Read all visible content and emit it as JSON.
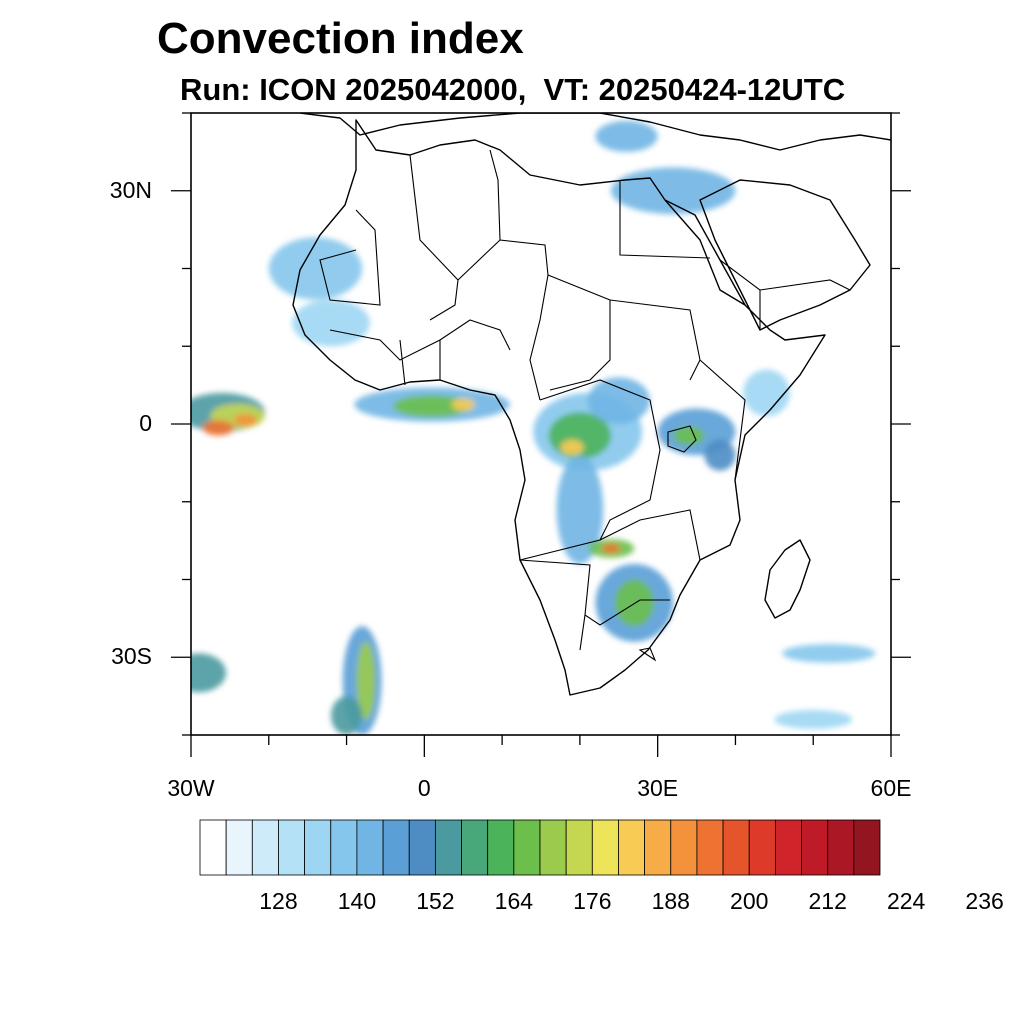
{
  "map": {
    "title": "Convection index",
    "subtitle": "Run: ICON 2025042000,  VT: 20250424-12UTC",
    "lon_ticks": [
      {
        "value": -30,
        "label": "30W"
      },
      {
        "value": 0,
        "label": "0"
      },
      {
        "value": 30,
        "label": "30E"
      },
      {
        "value": 60,
        "label": "60E"
      }
    ],
    "lat_ticks": [
      {
        "value": 30,
        "label": "30N"
      },
      {
        "value": 0,
        "label": "0"
      },
      {
        "value": -30,
        "label": "30S"
      }
    ],
    "lon_range": [
      -30,
      60
    ],
    "lat_range": [
      -40,
      40
    ]
  },
  "colorbar": {
    "colors": [
      "#ffffff",
      "#e8f5fc",
      "#cdebf9",
      "#b4e1f6",
      "#9dd6f3",
      "#85c6ec",
      "#70b5e4",
      "#5a9fd6",
      "#4d8dc4",
      "#4a9aa0",
      "#49a879",
      "#4bb35a",
      "#6cbf4b",
      "#9acb4c",
      "#c5d651",
      "#eee45a",
      "#f8cb55",
      "#f7ac47",
      "#f4913b",
      "#ee7232",
      "#e6542c",
      "#dd3a2a",
      "#cf252a",
      "#be1a28",
      "#ab1724",
      "#931520"
    ],
    "labels": [
      "128",
      "140",
      "152",
      "164",
      "176",
      "188",
      "200",
      "212",
      "224",
      "236"
    ]
  },
  "convection_regions": [
    {
      "lon": -26,
      "lat": 1.5,
      "rx": 5.5,
      "ry": 2.5,
      "level": 9
    },
    {
      "lon": -24,
      "lat": 1.0,
      "rx": 3.5,
      "ry": 1.6,
      "level": 14
    },
    {
      "lon": -26.5,
      "lat": -0.5,
      "rx": 2.0,
      "ry": 1.0,
      "level": 19
    },
    {
      "lon": -23,
      "lat": 0.5,
      "rx": 1.5,
      "ry": 0.8,
      "level": 18
    },
    {
      "lon": 1,
      "lat": 2.5,
      "rx": 10,
      "ry": 2.2,
      "level": 6
    },
    {
      "lon": 1,
      "lat": 2.3,
      "rx": 5,
      "ry": 1.4,
      "level": 12
    },
    {
      "lon": 5,
      "lat": 2.5,
      "rx": 1.5,
      "ry": 0.8,
      "level": 16
    },
    {
      "lon": 21,
      "lat": -1,
      "rx": 7,
      "ry": 5,
      "level": 5
    },
    {
      "lon": 20,
      "lat": -1.5,
      "rx": 4,
      "ry": 3,
      "level": 11
    },
    {
      "lon": 19,
      "lat": -3,
      "rx": 1.5,
      "ry": 1.0,
      "level": 16
    },
    {
      "lon": 25,
      "lat": 3,
      "rx": 4,
      "ry": 3,
      "level": 6
    },
    {
      "lon": 35,
      "lat": -1,
      "rx": 5,
      "ry": 3,
      "level": 7
    },
    {
      "lon": 34,
      "lat": -1.5,
      "rx": 2,
      "ry": 1.2,
      "level": 12
    },
    {
      "lon": 38,
      "lat": -4,
      "rx": 2,
      "ry": 2,
      "level": 8
    },
    {
      "lon": 20,
      "lat": -11,
      "rx": 3,
      "ry": 7,
      "level": 6
    },
    {
      "lon": 24,
      "lat": -16,
      "rx": 3,
      "ry": 1.2,
      "level": 12
    },
    {
      "lon": 24,
      "lat": -16,
      "rx": 1.2,
      "ry": 0.6,
      "level": 19
    },
    {
      "lon": 27,
      "lat": -23,
      "rx": 5,
      "ry": 5,
      "level": 7
    },
    {
      "lon": 27,
      "lat": -23,
      "rx": 2.5,
      "ry": 3,
      "level": 12
    },
    {
      "lon": -8,
      "lat": -33,
      "rx": 2.5,
      "ry": 7,
      "level": 7
    },
    {
      "lon": -7.5,
      "lat": -33,
      "rx": 1.2,
      "ry": 5,
      "level": 13
    },
    {
      "lon": -10,
      "lat": -37.5,
      "rx": 2,
      "ry": 2.5,
      "level": 9
    },
    {
      "lon": -29,
      "lat": -32,
      "rx": 3.5,
      "ry": 2.5,
      "level": 9
    },
    {
      "lon": -14,
      "lat": 20,
      "rx": 6,
      "ry": 4,
      "level": 5
    },
    {
      "lon": -12,
      "lat": 13,
      "rx": 5,
      "ry": 3,
      "level": 4
    },
    {
      "lon": 32,
      "lat": 30,
      "rx": 8,
      "ry": 3,
      "level": 6
    },
    {
      "lon": 26,
      "lat": 37,
      "rx": 4,
      "ry": 2,
      "level": 6
    },
    {
      "lon": 52,
      "lat": -29.5,
      "rx": 6,
      "ry": 1.2,
      "level": 5
    },
    {
      "lon": 50,
      "lat": -38,
      "rx": 5,
      "ry": 1.2,
      "level": 4
    },
    {
      "lon": 44,
      "lat": 4,
      "rx": 3,
      "ry": 3,
      "level": 4
    }
  ]
}
